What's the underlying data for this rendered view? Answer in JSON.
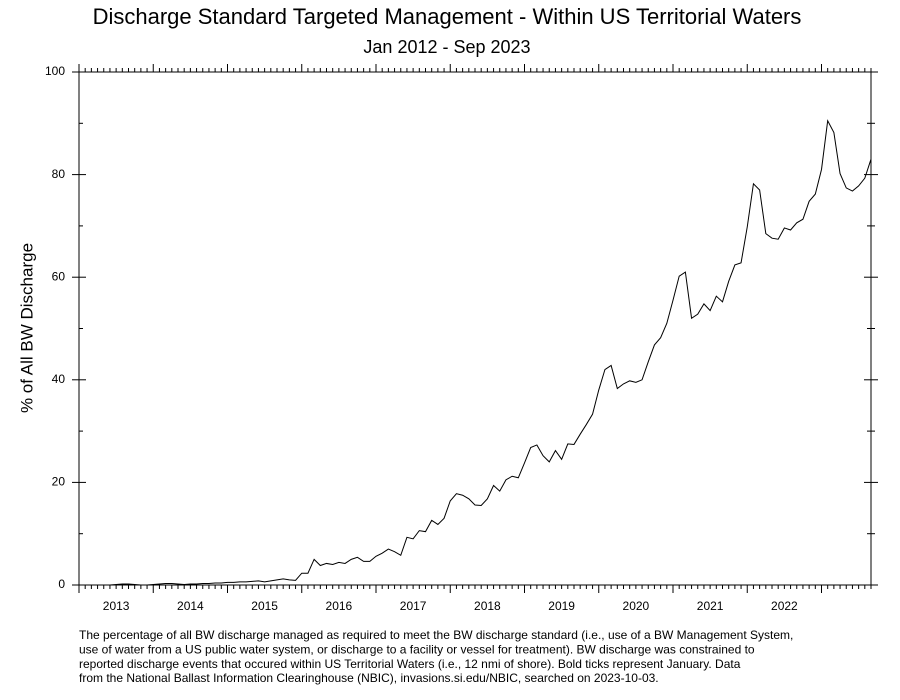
{
  "chart_data": {
    "type": "line",
    "title": "Discharge Standard Targeted Management - Within US Territorial Waters",
    "subtitle": "Jan 2012 - Sep 2023",
    "y_label": "% of All BW Discharge",
    "categories": [
      null,
      null,
      null,
      null,
      null,
      null,
      "2013",
      null,
      null,
      null,
      null,
      null,
      null,
      null,
      null,
      null,
      null,
      null,
      "2014",
      null,
      null,
      null,
      null,
      null,
      null,
      null,
      null,
      null,
      null,
      null,
      "2015",
      null,
      null,
      null,
      null,
      null,
      null,
      null,
      null,
      null,
      null,
      null,
      "2016",
      null,
      null,
      null,
      null,
      null,
      null,
      null,
      null,
      null,
      null,
      null,
      "2017",
      null,
      null,
      null,
      null,
      null,
      null,
      null,
      null,
      null,
      null,
      null,
      "2018",
      null,
      null,
      null,
      null,
      null,
      null,
      null,
      null,
      null,
      null,
      null,
      "2019",
      null,
      null,
      null,
      null,
      null,
      null,
      null,
      null,
      null,
      null,
      null,
      "2020",
      null,
      null,
      null,
      null,
      null,
      null,
      null,
      null,
      null,
      null,
      null,
      "2021",
      null,
      null,
      null,
      null,
      null,
      null,
      null,
      null,
      null,
      null,
      null,
      "2022",
      null,
      null,
      null,
      null,
      null,
      null,
      null,
      null,
      null,
      null,
      null,
      null,
      null,
      null
    ],
    "series": [
      {
        "name": "% of All BW Discharge",
        "color": "#000000",
        "values": [
          0,
          0,
          0,
          0,
          0,
          0,
          0.1,
          0.2,
          0.2,
          0.1,
          0,
          0,
          0.1,
          0.2,
          0.3,
          0.3,
          0.2,
          0.1,
          0.2,
          0.2,
          0.3,
          0.3,
          0.4,
          0.4,
          0.5,
          0.5,
          0.6,
          0.6,
          0.7,
          0.8,
          0.6,
          0.8,
          1.0,
          1.2,
          1.0,
          0.9,
          2.3,
          2.3,
          5.0,
          3.8,
          4.2,
          4.0,
          4.4,
          4.2,
          5.0,
          5.4,
          4.6,
          4.6,
          5.6,
          6.2,
          7.0,
          6.5,
          5.8,
          9.3,
          9.0,
          10.6,
          10.4,
          12.6,
          11.8,
          13.0,
          16.4,
          17.8,
          17.5,
          16.8,
          15.6,
          15.5,
          16.8,
          19.4,
          18.3,
          20.5,
          21.2,
          20.9,
          23.8,
          26.8,
          27.3,
          25.2,
          24.0,
          26.2,
          24.5,
          27.5,
          27.4,
          29.4,
          31.3,
          33.3,
          38.0,
          42.0,
          42.8,
          38.3,
          39.2,
          39.8,
          39.5,
          40.0,
          43.5,
          46.8,
          48.2,
          51.0,
          55.5,
          60.2,
          61.0,
          52.0,
          52.8,
          54.8,
          53.5,
          56.3,
          55.2,
          59.2,
          62.4,
          62.8,
          69.8,
          78.2,
          77.0,
          68.5,
          67.6,
          67.4,
          69.6,
          69.2,
          70.6,
          71.3,
          74.8,
          76.2,
          81.0,
          90.5,
          88.2,
          80.2,
          77.4,
          76.8,
          77.8,
          79.3,
          83.0
        ]
      }
    ],
    "ylim": [
      0,
      100
    ],
    "yticks": [
      0,
      20,
      40,
      60,
      80,
      100
    ],
    "note": [
      "The percentage of all BW discharge managed as required to meet the BW discharge standard (i.e., use of a BW Management System,",
      "use of water from a US public water system, or discharge to a facility or vessel for treatment). BW discharge was constrained to",
      "reported discharge events that occured within US Territorial Waters (i.e., 12 nmi of shore). Bold ticks represent January. Data",
      "from the National Ballast Information Clearinghouse (NBIC), invasions.si.edu/NBIC, searched on 2023-10-03."
    ]
  }
}
